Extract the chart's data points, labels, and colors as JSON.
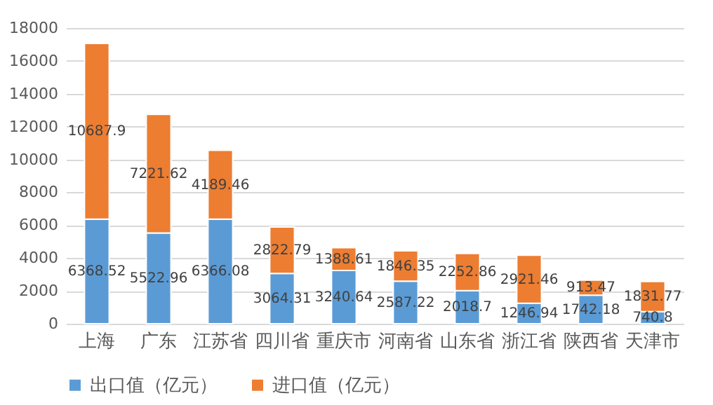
{
  "chart_data": {
    "type": "bar",
    "stacked": true,
    "categories": [
      "上海",
      "广东",
      "江苏省",
      "四川省",
      "重庆市",
      "河南省",
      "山东省",
      "浙江省",
      "陕西省",
      "天津市"
    ],
    "series": [
      {
        "name": "出口值（亿元）",
        "color": "#5b9bd5",
        "values": [
          6368.52,
          5522.96,
          6366.08,
          3064.31,
          3240.64,
          2587.22,
          2018.7,
          1246.94,
          1742.18,
          740.8
        ]
      },
      {
        "name": "进口值（亿元）",
        "color": "#ed7d31",
        "values": [
          10687.9,
          7221.62,
          4189.46,
          2822.79,
          1388.61,
          1846.35,
          2252.86,
          2921.46,
          913.47,
          1831.77
        ]
      }
    ],
    "ylim": [
      0,
      18000
    ],
    "yticks": [
      0,
      2000,
      4000,
      6000,
      8000,
      10000,
      12000,
      14000,
      16000,
      18000
    ],
    "grid": "y",
    "legend": "bottom",
    "data_labels": true
  }
}
